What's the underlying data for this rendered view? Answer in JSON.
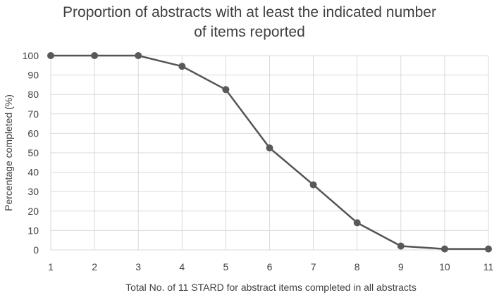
{
  "chart_data": {
    "type": "line",
    "title_lines": [
      "Proportion of abstracts with at least the indicated number",
      "of items reported"
    ],
    "xlabel": "Total No. of 11 STARD  for abstract items completed in all abstracts",
    "ylabel": "Percentage completed (%)",
    "x": [
      1,
      2,
      3,
      4,
      5,
      6,
      7,
      8,
      9,
      10,
      11
    ],
    "series": [
      {
        "values": [
          100,
          100,
          100,
          94.5,
          82.5,
          52.5,
          33.5,
          14,
          2,
          0.5,
          0.5
        ]
      }
    ],
    "xlim": [
      1,
      11
    ],
    "ylim": [
      0,
      100
    ],
    "yticks": [
      0,
      10,
      20,
      30,
      40,
      50,
      60,
      70,
      80,
      90,
      100
    ],
    "grid": true,
    "colors": {
      "line": "#555555",
      "marker": "#595959",
      "grid": "#d9d9d9"
    }
  }
}
